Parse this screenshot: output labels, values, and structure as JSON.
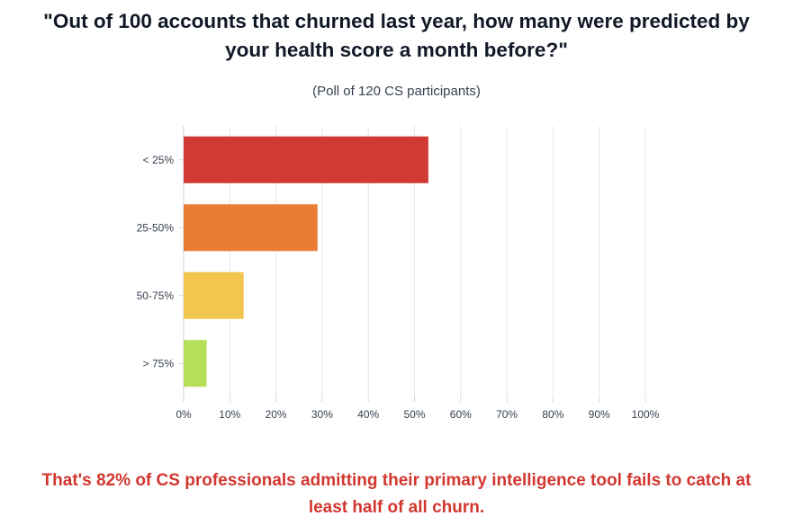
{
  "title": {
    "line1": "\"Out of 100 accounts that churned last year, how many were predicted by",
    "line2": "your health score a month before?\""
  },
  "subtitle": "(Poll of 120 CS participants)",
  "footer": {
    "line1": "That's 82% of CS professionals admitting their primary intelligence tool fails to catch at",
    "line2": "least half of all churn."
  },
  "colors": {
    "title": "#111827",
    "footer": "#d1372f",
    "grid": "#e5e7eb",
    "axis": "#cfd3d8"
  },
  "chart_data": {
    "type": "bar",
    "orientation": "horizontal",
    "categories": [
      "< 25%",
      "25-50%",
      "50-75%",
      "> 75%"
    ],
    "values": [
      53,
      29,
      13,
      5
    ],
    "bar_colors": [
      "#cf3a33",
      "#ea7d36",
      "#f2c54f",
      "#b3e057"
    ],
    "xlim": [
      0,
      100
    ],
    "x_ticks": [
      0,
      10,
      20,
      30,
      40,
      50,
      60,
      70,
      80,
      90,
      100
    ],
    "x_tick_suffix": "%",
    "grid": true,
    "legend": false
  }
}
